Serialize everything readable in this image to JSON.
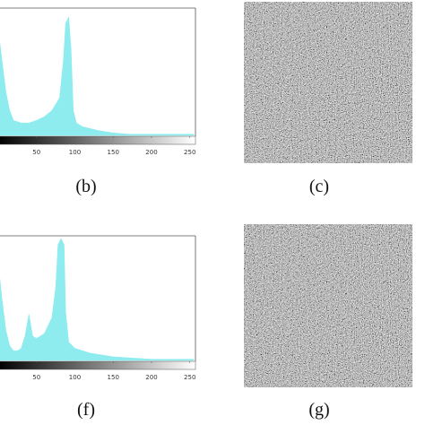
{
  "captions": [
    "(b)",
    "(c)",
    "(f)",
    "(g)"
  ],
  "chart_data": [
    {
      "type": "area",
      "color": "#8eecef",
      "xlim": [
        0,
        255
      ],
      "ylim": [
        0,
        100
      ],
      "xticks": [
        50,
        100,
        150,
        200,
        250
      ],
      "x": [
        0,
        5,
        10,
        15,
        20,
        30,
        40,
        50,
        60,
        70,
        80,
        85,
        88,
        92,
        95,
        98,
        102,
        110,
        130,
        150,
        170,
        200,
        255
      ],
      "values": [
        85,
        60,
        35,
        20,
        12,
        10,
        10,
        12,
        15,
        20,
        30,
        60,
        90,
        95,
        70,
        20,
        10,
        7,
        4,
        2,
        1,
        1,
        1
      ]
    },
    {
      "type": "area",
      "color": "#8eecef",
      "xlim": [
        0,
        255
      ],
      "ylim": [
        0,
        100
      ],
      "xticks": [
        50,
        100,
        150,
        200,
        250
      ],
      "x": [
        0,
        5,
        10,
        15,
        20,
        25,
        30,
        35,
        40,
        45,
        50,
        60,
        70,
        75,
        78,
        82,
        86,
        88,
        92,
        100,
        120,
        150,
        200,
        255
      ],
      "values": [
        80,
        50,
        25,
        12,
        8,
        8,
        10,
        20,
        38,
        20,
        18,
        22,
        35,
        60,
        95,
        100,
        95,
        40,
        15,
        10,
        6,
        3,
        1,
        1
      ]
    }
  ]
}
